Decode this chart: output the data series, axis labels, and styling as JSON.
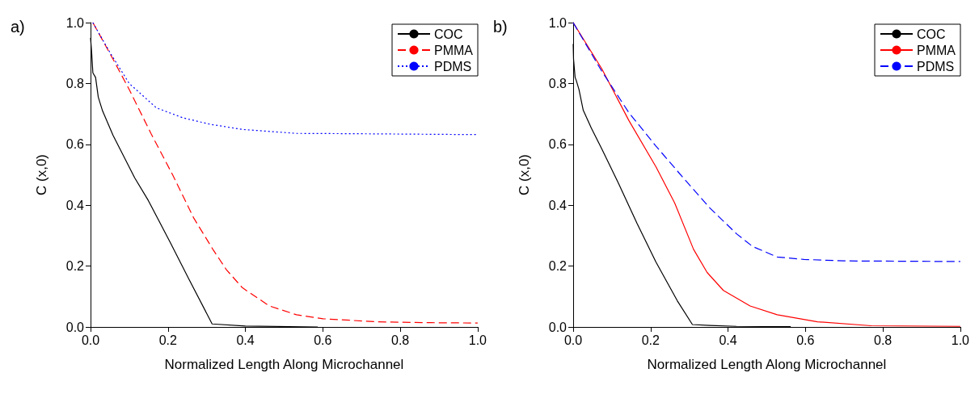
{
  "chart_data": [
    {
      "type": "line",
      "title": "a)",
      "xlabel": "Normalized Length Along Microchannel",
      "ylabel": "C (x,0)",
      "xlim": [
        0,
        1
      ],
      "ylim": [
        0,
        1
      ],
      "xticks": [
        {
          "value": 0,
          "label": "0.0"
        },
        {
          "value": 0.2,
          "label": "0.2"
        },
        {
          "value": 0.4,
          "label": "0.4"
        },
        {
          "value": 0.6,
          "label": "0.6"
        },
        {
          "value": 0.8,
          "label": "0.8"
        },
        {
          "value": 1,
          "label": "1.0"
        }
      ],
      "yticks": [
        {
          "value": 0,
          "label": "0.0"
        },
        {
          "value": 0.2,
          "label": "0.2"
        },
        {
          "value": 0.4,
          "label": "0.4"
        },
        {
          "value": 0.6,
          "label": "0.6"
        },
        {
          "value": 0.8,
          "label": "0.8"
        },
        {
          "value": 1,
          "label": "1.0"
        }
      ],
      "grid": false,
      "legend": "top right",
      "marker": "none",
      "series": [
        {
          "name": "COC",
          "color": "#000000",
          "line_style": "solid",
          "x": [
            0,
            0.003,
            0.006,
            0.013,
            0.02,
            0.031,
            0.058,
            0.114,
            0.149,
            0.205,
            0.253,
            0.314,
            0.4,
            0.587
          ],
          "values": [
            0.95,
            0.9,
            0.835,
            0.82,
            0.755,
            0.71,
            0.63,
            0.49,
            0.416,
            0.28,
            0.16,
            0.01,
            0.003,
            0.0
          ]
        },
        {
          "name": "PMMA",
          "color": "#ff0000",
          "line_style": "dashed",
          "x": [
            0.006,
            0.058,
            0.1,
            0.156,
            0.212,
            0.267,
            0.316,
            0.351,
            0.392,
            0.462,
            0.532,
            0.601,
            0.74,
            0.88,
            1.0
          ],
          "values": [
            1.0,
            0.88,
            0.78,
            0.636,
            0.5,
            0.357,
            0.255,
            0.188,
            0.129,
            0.069,
            0.04,
            0.027,
            0.017,
            0.014,
            0.013
          ]
        },
        {
          "name": "PDMS",
          "color": "#0000ff",
          "line_style": "dotted",
          "x": [
            0.006,
            0.051,
            0.1,
            0.17,
            0.239,
            0.309,
            0.392,
            0.532,
            0.671,
            1.0
          ],
          "values": [
            1.0,
            0.9,
            0.8,
            0.72,
            0.687,
            0.666,
            0.649,
            0.636,
            0.635,
            0.632
          ]
        }
      ]
    },
    {
      "type": "line",
      "title": "b)",
      "xlabel": "Normalized Length Along Microchannel",
      "ylabel": "C (x,0)",
      "xlim": [
        0,
        1
      ],
      "ylim": [
        0,
        1
      ],
      "xticks": [
        {
          "value": 0,
          "label": "0.0"
        },
        {
          "value": 0.2,
          "label": "0.2"
        },
        {
          "value": 0.4,
          "label": "0.4"
        },
        {
          "value": 0.6,
          "label": "0.6"
        },
        {
          "value": 0.8,
          "label": "0.8"
        },
        {
          "value": 1,
          "label": "1.0"
        }
      ],
      "yticks": [
        {
          "value": 0,
          "label": "0.0"
        },
        {
          "value": 0.2,
          "label": "0.2"
        },
        {
          "value": 0.4,
          "label": "0.4"
        },
        {
          "value": 0.6,
          "label": "0.6"
        },
        {
          "value": 0.8,
          "label": "0.8"
        },
        {
          "value": 1,
          "label": "1.0"
        }
      ],
      "grid": false,
      "legend": "top right",
      "marker": "none",
      "series": [
        {
          "name": "COC",
          "color": "#000000",
          "line_style": "solid",
          "x": [
            0,
            0.001,
            0.005,
            0.008,
            0.015,
            0.026,
            0.047,
            0.074,
            0.116,
            0.165,
            0.214,
            0.269,
            0.308,
            0.353,
            0.422,
            0.562
          ],
          "values": [
            0.93,
            0.88,
            0.82,
            0.81,
            0.78,
            0.712,
            0.653,
            0.585,
            0.475,
            0.34,
            0.213,
            0.086,
            0.008,
            0.005,
            0.002,
            0.001
          ]
        },
        {
          "name": "PMMA",
          "color": "#ff0000",
          "line_style": "solid",
          "x": [
            0,
            0.074,
            0.144,
            0.214,
            0.262,
            0.311,
            0.346,
            0.388,
            0.457,
            0.527,
            0.631,
            0.77,
            1.0
          ],
          "values": [
            1.0,
            0.848,
            0.678,
            0.526,
            0.408,
            0.255,
            0.179,
            0.12,
            0.069,
            0.04,
            0.017,
            0.004,
            0.002
          ]
        },
        {
          "name": "PDMS",
          "color": "#0000ff",
          "line_style": "dashed",
          "x": [
            0,
            0.074,
            0.144,
            0.214,
            0.283,
            0.353,
            0.422,
            0.464,
            0.527,
            0.596,
            0.701,
            1.0
          ],
          "values": [
            1.0,
            0.84,
            0.704,
            0.594,
            0.492,
            0.391,
            0.306,
            0.264,
            0.23,
            0.222,
            0.217,
            0.215
          ]
        }
      ]
    }
  ]
}
